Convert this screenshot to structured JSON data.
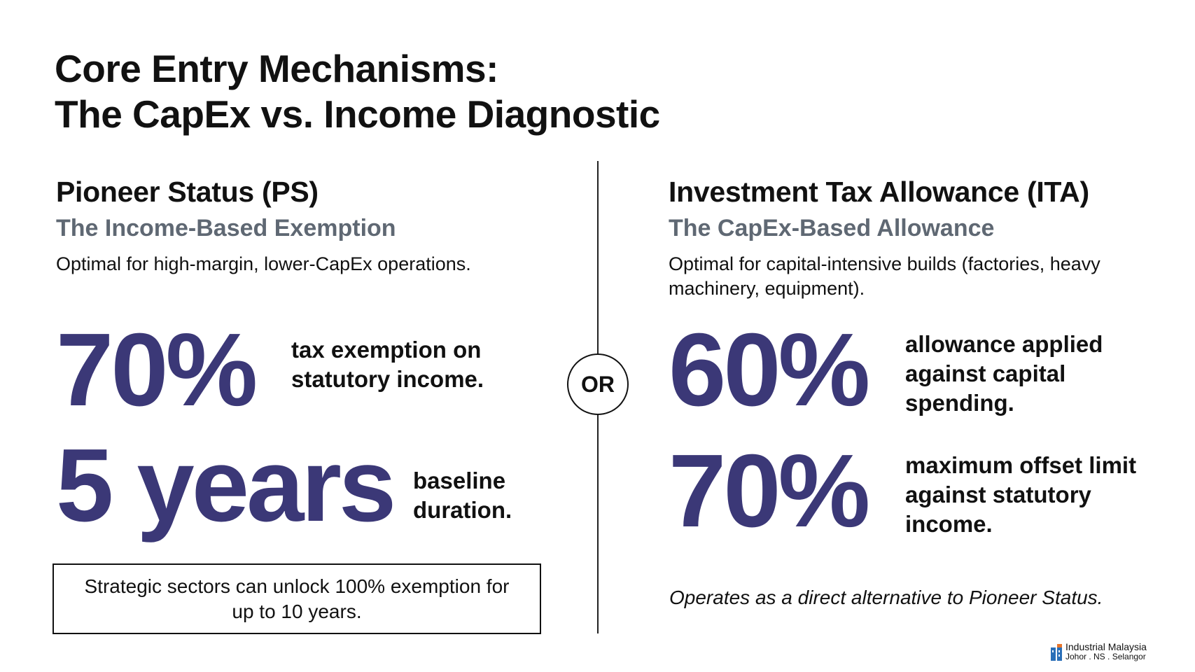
{
  "title": {
    "line1": "Core Entry Mechanisms:",
    "line2": "The CapEx vs. Income Diagnostic"
  },
  "divider": {
    "label": "OR"
  },
  "pioneer": {
    "title": "Pioneer Status (PS)",
    "subtitle": "The Income-Based Exemption",
    "description": "Optimal for high-margin, lower-CapEx operations.",
    "stat1_value": "70%",
    "stat1_text": "tax exemption on statutory income.",
    "stat2_value": "5 years",
    "stat2_text": "baseline duration.",
    "callout": "Strategic sectors can unlock 100% exemption for up to 10 years."
  },
  "ita": {
    "title": "Investment Tax Allowance (ITA)",
    "subtitle": "The CapEx-Based Allowance",
    "description": "Optimal for capital-intensive builds (factories, heavy machinery, equipment).",
    "stat1_value": "60%",
    "stat1_text": "allowance applied against capital spending.",
    "stat2_value": "70%",
    "stat2_text": "maximum offset limit against statutory income.",
    "note": "Operates as a direct alternative to Pioneer Status."
  },
  "brand": {
    "name": "Industrial Malaysia",
    "locations": "Johor . NS . Selangor",
    "colors": {
      "blue": "#2a6fb8",
      "orange": "#e8742a"
    }
  },
  "colors": {
    "stat": "#3b3877",
    "subtitle": "#5f6873",
    "text": "#111111"
  }
}
